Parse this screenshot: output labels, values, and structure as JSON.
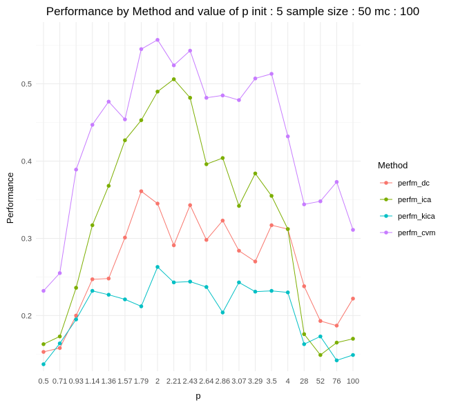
{
  "chart_data": {
    "type": "line",
    "title": "Performance by Method and value of p init :  5 sample size : 50  mc :  100",
    "xlabel": "p",
    "ylabel": "Performance",
    "categories": [
      "0.5",
      "0.71",
      "0.93",
      "1.14",
      "1.36",
      "1.57",
      "1.79",
      "2",
      "2.21",
      "2.43",
      "2.64",
      "2.86",
      "3.07",
      "3.29",
      "3.5",
      "4",
      "28",
      "52",
      "76",
      "100"
    ],
    "tick_labels": [
      "0.5",
      "0.71",
      "0.93",
      "1.14",
      "1.36",
      "1.57",
      "1.79",
      "2",
      "2.21",
      "2.43",
      "2.64",
      "2.86",
      "3.07",
      "3.29",
      "3.5",
      "4",
      "28",
      "52",
      "76",
      "100"
    ],
    "ylim": [
      0.128,
      0.58
    ],
    "yticks": [
      0.2,
      0.3,
      0.4,
      0.5
    ],
    "ytick_labels": [
      "0.2",
      "0.3",
      "0.4",
      "0.5"
    ],
    "grid": true,
    "legend": {
      "title": "Method",
      "position": "right"
    },
    "series": [
      {
        "name": "perfm_dc",
        "color": "#F8766D",
        "values": [
          0.153,
          0.158,
          0.2,
          0.247,
          0.248,
          0.301,
          0.361,
          0.345,
          0.291,
          0.343,
          0.298,
          0.323,
          0.284,
          0.27,
          0.317,
          0.312,
          0.238,
          0.193,
          0.187,
          0.222
        ]
      },
      {
        "name": "perfm_ica",
        "color": "#7CAE00",
        "values": [
          0.163,
          0.173,
          0.236,
          0.317,
          0.368,
          0.427,
          0.453,
          0.49,
          0.506,
          0.482,
          0.396,
          0.404,
          0.342,
          0.384,
          0.355,
          0.312,
          0.176,
          0.149,
          0.165,
          0.17
        ]
      },
      {
        "name": "perfm_kica",
        "color": "#00BFC4",
        "values": [
          0.137,
          0.164,
          0.195,
          0.232,
          0.227,
          0.221,
          0.212,
          0.263,
          0.243,
          0.244,
          0.237,
          0.204,
          0.243,
          0.231,
          0.232,
          0.23,
          0.163,
          0.173,
          0.142,
          0.149
        ]
      },
      {
        "name": "perfm_cvm",
        "color": "#C77CFF",
        "values": [
          0.232,
          0.255,
          0.389,
          0.447,
          0.477,
          0.454,
          0.545,
          0.557,
          0.524,
          0.543,
          0.482,
          0.485,
          0.479,
          0.507,
          0.513,
          0.432,
          0.344,
          0.348,
          0.373,
          0.311
        ]
      }
    ]
  }
}
